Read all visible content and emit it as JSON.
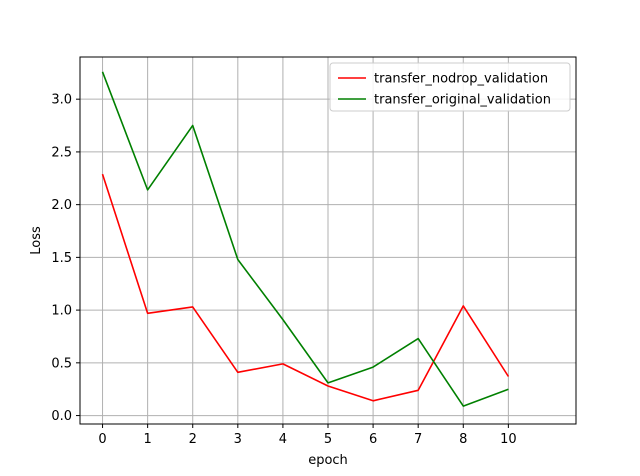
{
  "chart_data": {
    "type": "line",
    "xlabel": "epoch",
    "ylabel": "Loss",
    "xlim": [
      -0.5,
      10.5
    ],
    "ylim": [
      -0.08,
      3.4
    ],
    "xticks": [
      0,
      1,
      2,
      3,
      4,
      5,
      6,
      7,
      8,
      10
    ],
    "yticks": [
      0.0,
      0.5,
      1.0,
      1.5,
      2.0,
      2.5,
      3.0
    ],
    "grid": true,
    "legend_position": "top-right",
    "x": [
      0,
      1,
      2,
      3,
      4,
      5,
      6,
      7,
      8,
      9
    ],
    "series": [
      {
        "name": "transfer_nodrop_validation",
        "color": "#ff0000",
        "values": [
          2.29,
          0.97,
          1.03,
          0.41,
          0.49,
          0.28,
          0.14,
          0.24,
          1.04,
          0.37
        ]
      },
      {
        "name": "transfer_original_validation",
        "color": "#008000",
        "values": [
          3.26,
          2.14,
          2.75,
          1.48,
          0.91,
          0.31,
          0.46,
          0.73,
          0.09,
          0.25
        ]
      }
    ]
  }
}
